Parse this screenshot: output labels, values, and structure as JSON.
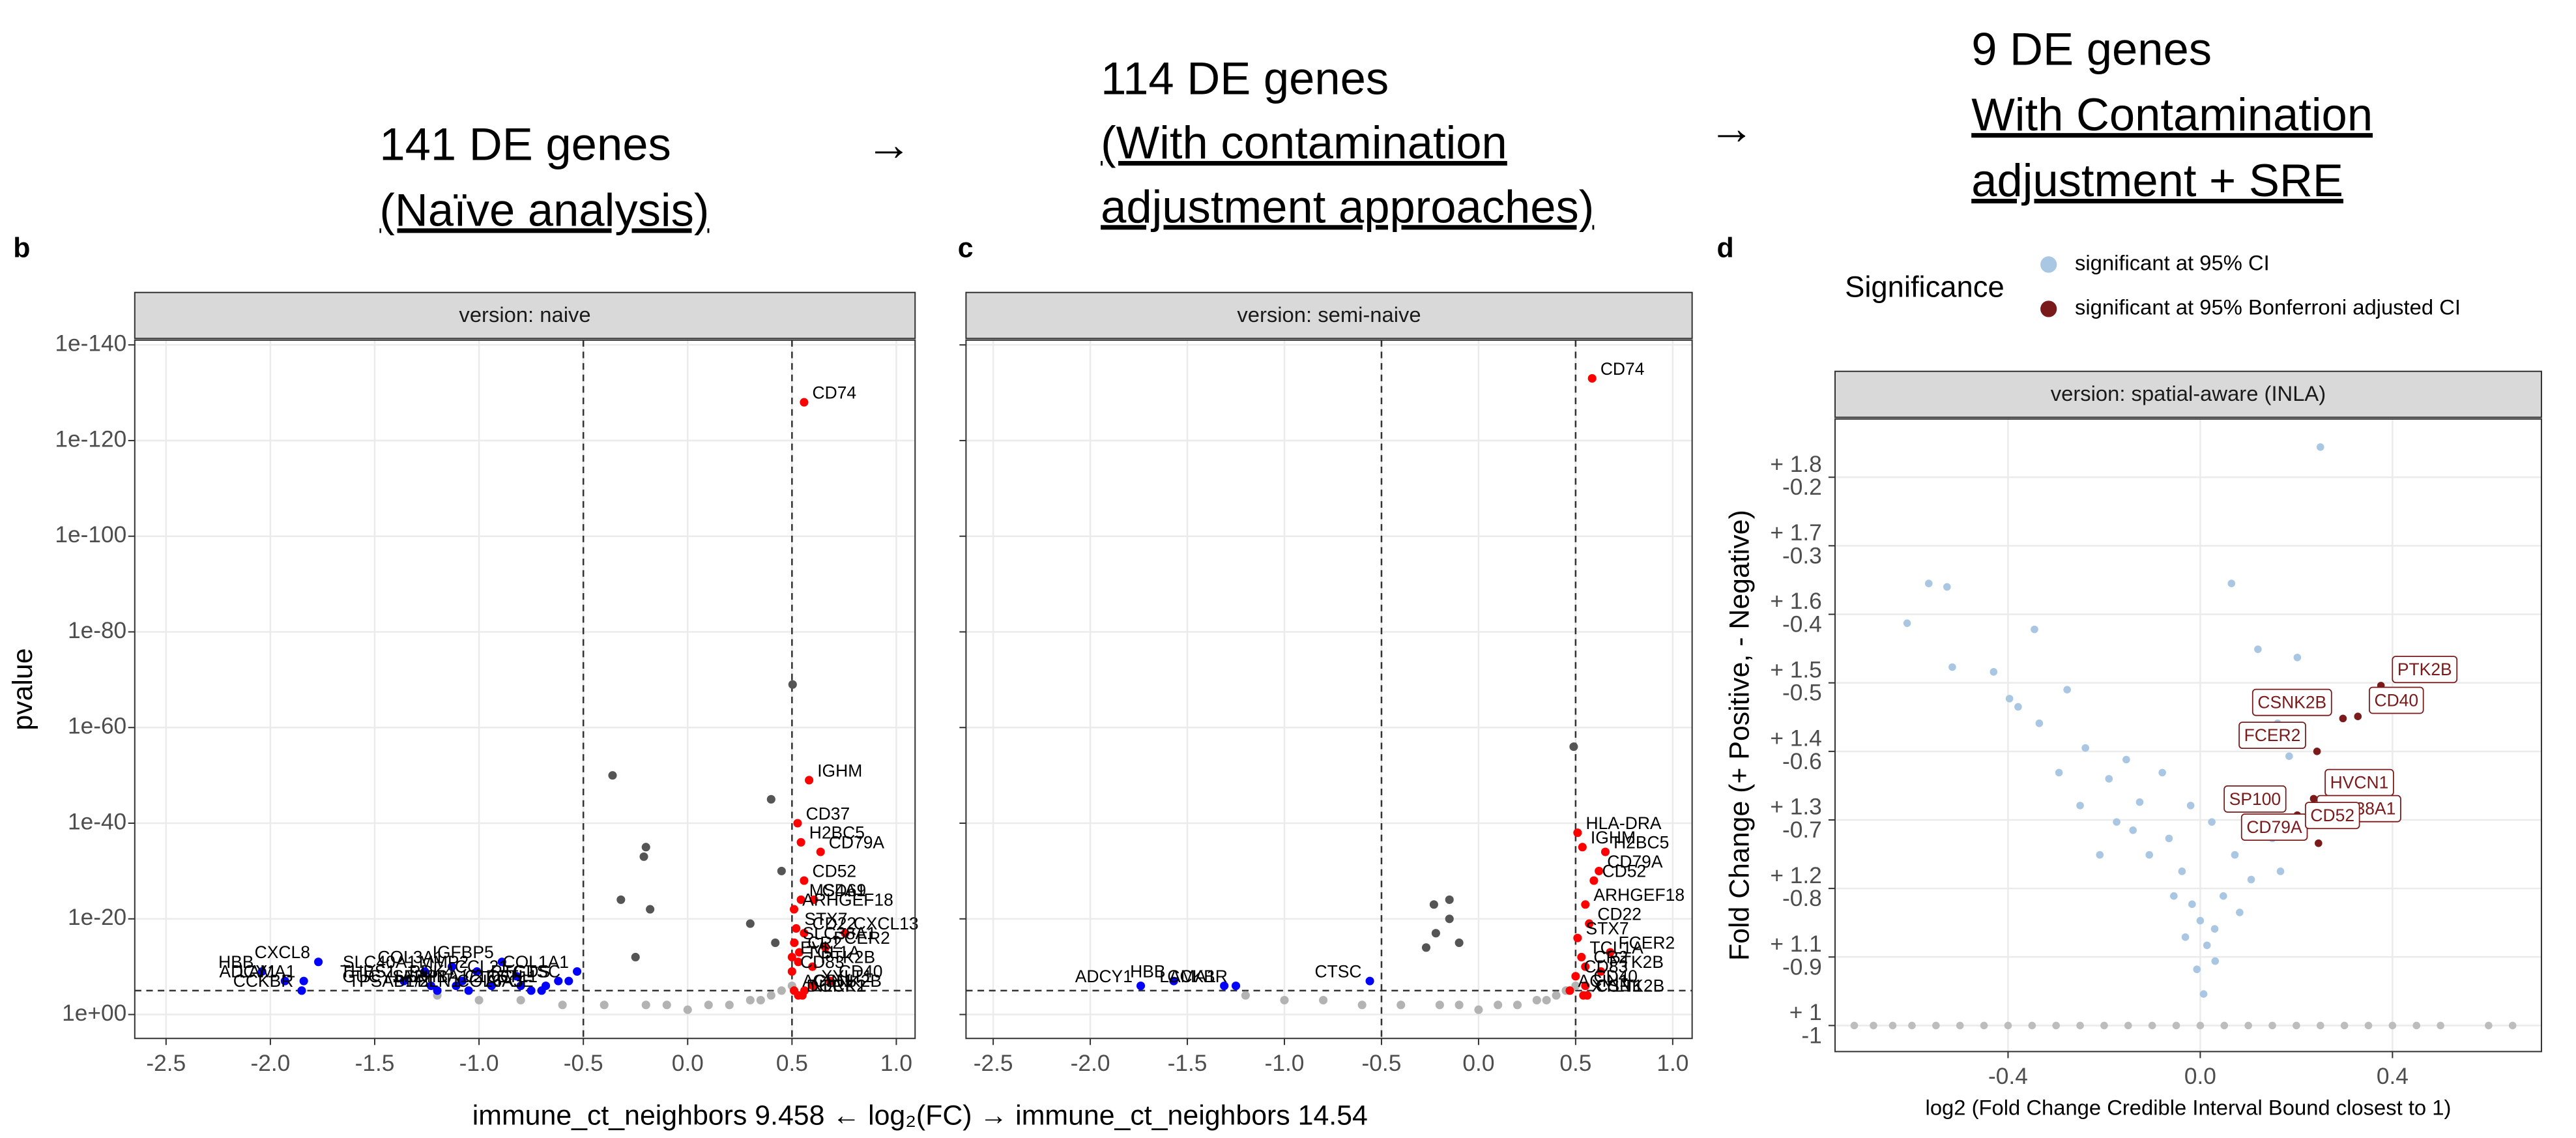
{
  "arrows": [
    "→",
    "→"
  ],
  "xlabel": "immune_ct_neighbors 9.458 ← log₂(FC) → immune_ct_neighbors 14.54",
  "chart_data": [
    {
      "type": "scatter",
      "panel": "b",
      "title": "141 DE genes",
      "subtitle": [
        "(Naïve analysis)"
      ],
      "facet": "version: naive",
      "ylabel": "pvalue",
      "log_y": true,
      "grid": true,
      "xlim": [
        -2.65,
        1.09
      ],
      "ylim": [
        100000,
        1e-141
      ],
      "xticks": [
        -2.5,
        {
          "value": -2,
          "label": "-2.0"
        },
        -1.5,
        {
          "value": -1,
          "label": "-1.0"
        },
        -0.5,
        {
          "value": 0,
          "label": "0.0"
        },
        0.5,
        {
          "value": 1,
          "label": "1.0"
        }
      ],
      "yticks": [
        {
          "value": 1,
          "label": "1e+00"
        },
        {
          "value": 1e-20,
          "label": "1e-20"
        },
        {
          "value": 1e-40,
          "label": "1e-40"
        },
        {
          "value": 1e-60,
          "label": "1e-60"
        },
        {
          "value": 1e-80,
          "label": "1e-80"
        },
        {
          "value": 1e-100,
          "label": "1e-100"
        },
        {
          "value": 1e-120,
          "label": "1e-120"
        },
        {
          "value": 1e-140,
          "label": "1e-140"
        }
      ],
      "vlines": [
        -0.5,
        0.5
      ],
      "hline": 1e-05,
      "series": [
        {
          "color": "#ff0000",
          "labels": [
            "CD74",
            "IGHM",
            "CD37",
            "H2BC5",
            "CD79A",
            "CD52",
            "MS4A1",
            "CD69",
            "ARHGEF18",
            "STX7",
            "CXCL13",
            "CD22",
            "SLC38A1",
            "FCER2",
            "CR2",
            "EVL",
            "TCL1A",
            "PTK2B",
            "CD83",
            "CD40",
            "XYLT1",
            "CSNK2B",
            "ACIN1",
            "DOCK2",
            "NLRP1"
          ],
          "x": [
            0.558,
            0.582,
            0.527,
            0.543,
            0.637,
            0.558,
            0.543,
            0.605,
            0.51,
            0.52,
            0.755,
            0.558,
            0.511,
            0.66,
            0.535,
            0.5,
            0.53,
            0.598,
            0.5,
            0.684,
            0.6,
            0.56,
            0.51,
            0.53,
            0.55
          ],
          "values": [
            1e-128,
            1e-49,
            1e-40,
            1e-36,
            1e-34,
            1e-28,
            1e-24,
            1e-24,
            1e-22,
            1e-18,
            1e-17,
            1e-17,
            1e-15,
            1e-14,
            1e-13,
            1e-12,
            1e-11,
            1e-10,
            1e-09,
            1e-07,
            1e-06,
            1e-05,
            1e-05,
            0.0001,
            0.0001
          ]
        },
        {
          "color": "#0000ff",
          "labels": [
            "HBB",
            "CXCL8",
            "LAMA1",
            "ADCY1",
            "CCKBR",
            "THBS1",
            "SLC40A1",
            "COL3A1",
            "IGFBP5",
            "MMP2",
            "PDK4",
            "GUCY1A2",
            "SFRP1",
            "TPSAB1/2",
            "PBLN1",
            "HBA1/2",
            "CCL21",
            "C1QC",
            "COL6A3",
            "FSTL1",
            "COL1A1",
            "PTGDS",
            "CTSC",
            "APOE"
          ],
          "x": [
            -2.04,
            -1.77,
            -1.84,
            -1.93,
            -1.85,
            -1.36,
            -1.26,
            -1.13,
            -0.89,
            -1.01,
            -1.08,
            -1.23,
            -1.11,
            -1.2,
            -1.05,
            -0.94,
            -0.82,
            -0.8,
            -0.75,
            -0.68,
            -0.53,
            -0.62,
            -0.57,
            -0.7
          ],
          "values": [
            1e-09,
            1e-11,
            1e-07,
            1e-07,
            1e-05,
            1e-07,
            1e-09,
            1e-10,
            1e-11,
            1e-09,
            1e-07,
            1e-06,
            1e-06,
            1e-05,
            1e-05,
            1e-06,
            1e-08,
            1e-06,
            1e-05,
            1e-06,
            1e-09,
            1e-07,
            1e-07,
            1e-05
          ]
        },
        {
          "color": "#555555",
          "x": [
            0.503,
            -0.36,
            0.4,
            -0.2,
            -0.21,
            -0.32,
            -0.18,
            0.3,
            -0.25,
            0.45,
            0.42
          ],
          "values": [
            1e-69,
            1e-50,
            1e-45,
            1e-35,
            1e-33,
            1e-24,
            1e-22,
            1e-19,
            1e-12,
            1e-30,
            1e-15
          ]
        },
        {
          "color": "#b3b3b3",
          "x": [
            -1.2,
            -1.0,
            -0.8,
            -0.6,
            -0.4,
            -0.2,
            -0.1,
            0,
            0.1,
            0.2,
            0.3,
            0.35,
            0.4,
            0.45,
            0.5
          ],
          "values": [
            0.0001,
            0.001,
            0.001,
            0.01,
            0.01,
            0.01,
            0.01,
            0.1,
            0.01,
            0.01,
            0.001,
            0.001,
            0.0001,
            1e-05,
            1e-06
          ]
        }
      ]
    },
    {
      "type": "scatter",
      "panel": "c",
      "title": "114 DE genes",
      "subtitle": [
        "(With contamination",
        "adjustment approaches)"
      ],
      "facet": "version: semi-naive",
      "log_y": true,
      "grid": true,
      "ytick_labels": false,
      "xlim": [
        -2.64,
        1.1
      ],
      "ylim": [
        100000,
        1e-141
      ],
      "xticks": [
        -2.5,
        {
          "value": -2,
          "label": "-2.0"
        },
        -1.5,
        {
          "value": -1,
          "label": "-1.0"
        },
        -0.5,
        {
          "value": 0,
          "label": "0.0"
        },
        0.5,
        {
          "value": 1,
          "label": "1.0"
        }
      ],
      "yticks": [
        1,
        1e-20,
        1e-40,
        1e-60,
        1e-80,
        1e-100,
        1e-120,
        1e-140
      ],
      "vlines": [
        -0.5,
        0.5
      ],
      "hline": 1e-05,
      "series": [
        {
          "color": "#ff0000",
          "labels": [
            "CD74",
            "HLA-DRA",
            "IGHM",
            "H2BC5",
            "CD79A",
            "CD52",
            "ARHGEF18",
            "CD22",
            "STX7",
            "FCER2",
            "TCL1A",
            "CR2",
            "PTK2B",
            "CD83",
            "CD40",
            "ACIN1",
            "XYLT1",
            "CSNK2B"
          ],
          "x": [
            0.585,
            0.51,
            0.535,
            0.653,
            0.62,
            0.594,
            0.55,
            0.57,
            0.51,
            0.678,
            0.53,
            0.55,
            0.63,
            0.5,
            0.55,
            0.47,
            0.54,
            0.56
          ],
          "values": [
            1e-133,
            1e-38,
            1e-35,
            1e-34,
            1e-30,
            1e-28,
            1e-23,
            1e-19,
            1e-16,
            1e-13,
            1e-12,
            1e-10,
            1e-09,
            1e-08,
            1e-06,
            1e-05,
            0.0001,
            0.0001
          ]
        },
        {
          "color": "#0000ff",
          "labels": [
            "ADCY1",
            "HBB",
            "LAMA1",
            "CCKBR",
            "CTSC"
          ],
          "x": [
            -1.74,
            -1.57,
            -1.31,
            -1.25,
            -0.56
          ],
          "values": [
            1e-06,
            1e-07,
            1e-06,
            1e-06,
            1e-07
          ]
        },
        {
          "color": "#555555",
          "x": [
            0.49,
            -0.15,
            -0.23,
            -0.15,
            -0.22,
            -0.27,
            -0.1
          ],
          "values": [
            1e-56,
            1e-24,
            1e-23,
            1e-20,
            1e-17,
            1e-14,
            1e-15
          ]
        },
        {
          "color": "#b3b3b3",
          "x": [
            -1.2,
            -1.0,
            -0.8,
            -0.6,
            -0.4,
            -0.2,
            -0.1,
            0,
            0.1,
            0.2,
            0.3,
            0.35,
            0.4,
            0.45,
            0.5
          ],
          "values": [
            0.0001,
            0.001,
            0.001,
            0.01,
            0.01,
            0.01,
            0.01,
            0.1,
            0.01,
            0.01,
            0.001,
            0.001,
            0.0001,
            1e-05,
            1e-06
          ]
        }
      ]
    },
    {
      "type": "scatter",
      "panel": "d",
      "title": "9 DE genes",
      "subtitle": [
        "With Contamination",
        "adjustment + SRE"
      ],
      "facet": "version: spatial-aware (INLA)",
      "grid": true,
      "ylabel": "Fold Change (+ Positive, - Negative)",
      "xlabel": "log2 (Fold Change Credible Interval Bound closest to 1)",
      "legend_title": "Significance",
      "legend": "top-right",
      "xlim": [
        -0.76,
        0.71
      ],
      "ylim": [
        0.962,
        1.885
      ],
      "xticks": [
        -0.4,
        {
          "value": 0,
          "label": "0.0"
        },
        0.4
      ],
      "yticks": [
        {
          "value": 1,
          "label": [
            "+ 1",
            "-1"
          ]
        },
        {
          "value": 1.1,
          "label": [
            "+ 1.1",
            "-0.9"
          ]
        },
        {
          "value": 1.2,
          "label": [
            "+ 1.2",
            "-0.8"
          ]
        },
        {
          "value": 1.3,
          "label": [
            "+ 1.3",
            "-0.7"
          ]
        },
        {
          "value": 1.4,
          "label": [
            "+ 1.4",
            "-0.6"
          ]
        },
        {
          "value": 1.5,
          "label": [
            "+ 1.5",
            "-0.5"
          ]
        },
        {
          "value": 1.6,
          "label": [
            "+ 1.6",
            "-0.4"
          ]
        },
        {
          "value": 1.7,
          "label": [
            "+ 1.7",
            "-0.3"
          ]
        },
        {
          "value": 1.8,
          "label": [
            "+ 1.8",
            "-0.2"
          ]
        }
      ],
      "series": [
        {
          "name": "significant at 95% CI",
          "color": "#a9c6e2",
          "x": [
            -0.565,
            -0.527,
            -0.61,
            0.065,
            0.25,
            -0.345,
            -0.516,
            -0.43,
            -0.397,
            -0.277,
            -0.335,
            -0.239,
            -0.154,
            -0.19,
            -0.126,
            -0.065,
            -0.038,
            -0.017,
            0,
            0.03,
            0.014,
            0.048,
            0.072,
            0.099,
            0.133,
            0.185,
            0.161,
            0.219,
            0.202,
            0.15,
            0.12,
            0.065,
            0.024,
            -0.02,
            -0.079,
            -0.106,
            -0.055,
            -0.007,
            0.007,
            0.031,
            -0.031,
            0.082,
            0.106,
            -0.14,
            -0.174,
            -0.209,
            -0.25,
            -0.294,
            -0.379,
            0.27,
            0.15,
            0.167
          ],
          "values": [
            1.645,
            1.64,
            1.587,
            1.645,
            1.844,
            1.578,
            1.523,
            1.516,
            1.477,
            1.49,
            1.441,
            1.405,
            1.388,
            1.36,
            1.326,
            1.273,
            1.225,
            1.177,
            1.153,
            1.141,
            1.117,
            1.189,
            1.249,
            1.297,
            1.345,
            1.393,
            1.441,
            1.465,
            1.537,
            1.477,
            1.549,
            1.345,
            1.297,
            1.321,
            1.369,
            1.249,
            1.189,
            1.082,
            1.046,
            1.094,
            1.129,
            1.165,
            1.213,
            1.285,
            1.297,
            1.249,
            1.321,
            1.369,
            1.465,
            1.369,
            1.273,
            1.225
          ]
        },
        {
          "name": "significant at 95% Bonferroni adjusted CI",
          "color": "#7b1a1a",
          "labels": [
            "PTK2B",
            "CSNK2B",
            "CD40",
            "FCER2",
            "HVCN1",
            "SP100",
            "SLC38A1",
            "CD79A",
            "CD52"
          ],
          "x": [
            0.376,
            0.297,
            0.328,
            0.243,
            0.236,
            0.202,
            0.219,
            0.246,
            0.195
          ],
          "values": [
            1.496,
            1.448,
            1.451,
            1.4,
            1.331,
            1.307,
            1.293,
            1.266,
            1.283
          ]
        },
        {
          "color": "#bdbdbd",
          "x": [
            -0.72,
            -0.68,
            -0.64,
            -0.6,
            -0.55,
            -0.5,
            -0.45,
            -0.4,
            -0.35,
            -0.3,
            -0.25,
            -0.2,
            -0.15,
            -0.1,
            -0.05,
            0,
            0.05,
            0.1,
            0.15,
            0.2,
            0.25,
            0.3,
            0.35,
            0.4,
            0.45,
            0.5,
            0.6,
            0.65
          ],
          "values": [
            1,
            1,
            1,
            1,
            1,
            1,
            1,
            1,
            1,
            1,
            1,
            1,
            1,
            1,
            1,
            1,
            1,
            1,
            1,
            1,
            1,
            1,
            1,
            1,
            1,
            1,
            1,
            1
          ]
        }
      ]
    }
  ]
}
